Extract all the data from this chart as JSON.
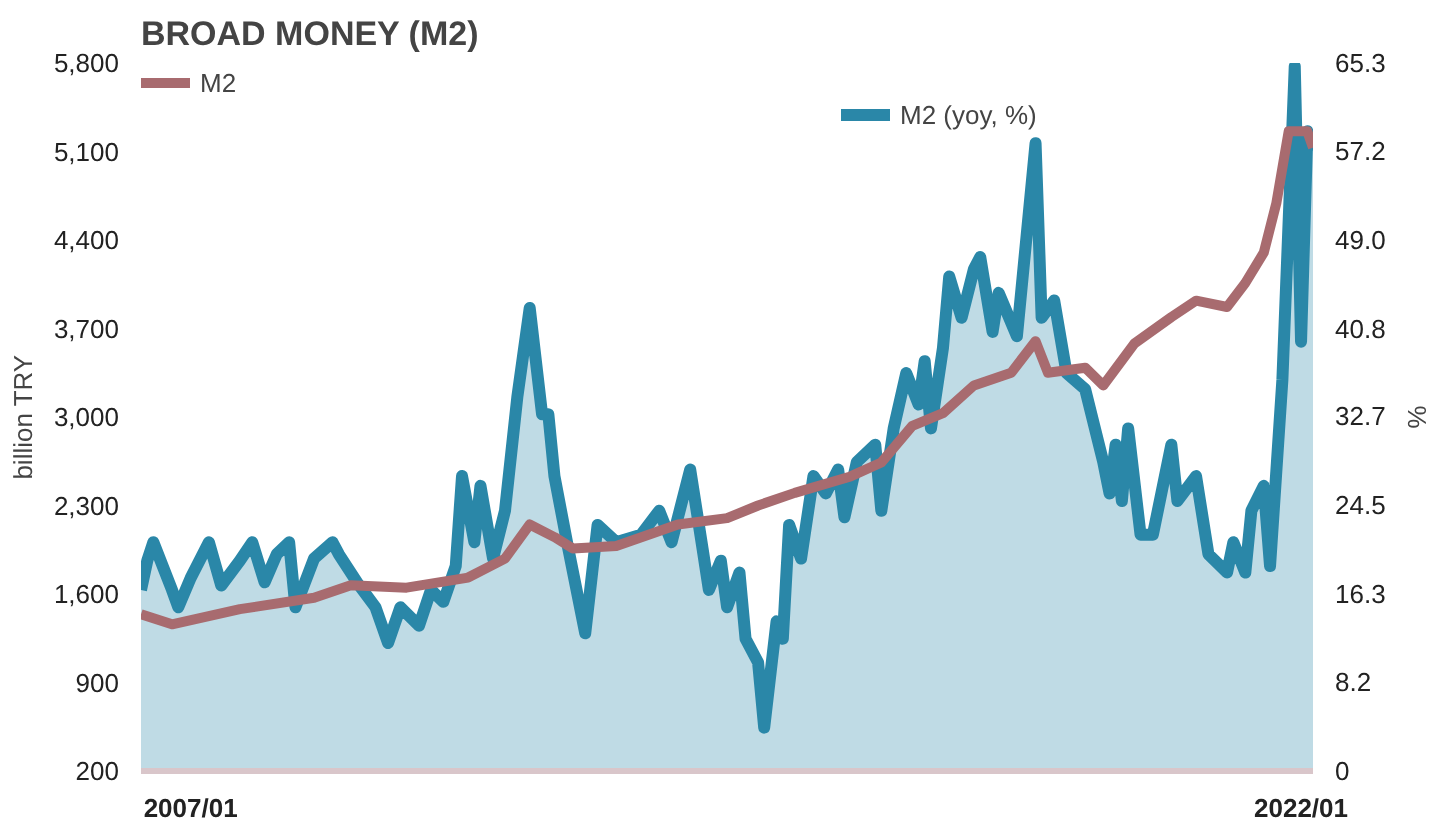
{
  "chart_data": {
    "type": "line",
    "title": "BROAD MONEY (M2)",
    "ylabel": "billion TRY",
    "y2label": "%",
    "legend": "top",
    "grid": false,
    "xlim": [
      "2006-05",
      "2022-03"
    ],
    "xticks": [
      {
        "value": "2007-01",
        "label": "2007/01"
      },
      {
        "value": "2022-01",
        "label": "2022/01"
      }
    ],
    "ylim": [
      200,
      5800
    ],
    "yticks": [
      200,
      900,
      {
        "value": 1600,
        "label": "1,600"
      },
      {
        "value": 2300,
        "label": "2,300"
      },
      {
        "value": 3000,
        "label": "3,000"
      },
      {
        "value": 3700,
        "label": "3,700"
      },
      {
        "value": 4400,
        "label": "4,400"
      },
      {
        "value": 5100,
        "label": "5,100"
      },
      {
        "value": 5800,
        "label": "5,800"
      }
    ],
    "y2lim": [
      0,
      65.3
    ],
    "y2ticks": [
      0,
      8.2,
      16.3,
      24.5,
      32.7,
      40.8,
      {
        "value": 49,
        "label": "49.0"
      },
      57.2,
      65.3
    ],
    "series": [
      {
        "name": "M2",
        "color": "#a86b6f",
        "x": [
          "2006-05",
          "2006-10",
          "2007-09",
          "2008-09",
          "2009-03",
          "2009-12",
          "2010-10",
          "2011-04",
          "2011-08",
          "2011-12",
          "2012-03",
          "2012-10",
          "2013-08",
          "2014-04",
          "2014-09",
          "2015-03",
          "2015-12",
          "2016-05",
          "2016-10",
          "2017-03",
          "2017-08",
          "2018-02",
          "2018-06",
          "2018-08",
          "2019-02",
          "2019-05",
          "2019-10",
          "2020-04",
          "2020-08",
          "2021-01",
          "2021-04",
          "2021-07",
          "2021-09",
          "2021-11",
          "2022-02",
          "2022-03"
        ],
        "values": [
          1440,
          1360,
          1480,
          1570,
          1670,
          1650,
          1730,
          1880,
          2150,
          2050,
          1960,
          1980,
          2150,
          2200,
          2300,
          2400,
          2530,
          2640,
          2930,
          3030,
          3250,
          3350,
          3600,
          3350,
          3390,
          3250,
          3580,
          3790,
          3920,
          3870,
          4060,
          4300,
          4690,
          5260,
          5260,
          5130
        ]
      },
      {
        "name": "M2 (yoy, %)",
        "type": "area",
        "axis": "y2",
        "color": "#2a87a8",
        "x": [
          "2006-05",
          "2006-06",
          "2006-07",
          "2006-10",
          "2006-11",
          "2007-01",
          "2007-04",
          "2007-06",
          "2007-09",
          "2007-11",
          "2008-01",
          "2008-03",
          "2008-05",
          "2008-06",
          "2008-09",
          "2008-12",
          "2009-01",
          "2009-04",
          "2009-07",
          "2009-09",
          "2009-11",
          "2010-02",
          "2010-04",
          "2010-06",
          "2010-08",
          "2010-09",
          "2010-11",
          "2010-12",
          "2011-02",
          "2011-04",
          "2011-06",
          "2011-08",
          "2011-10",
          "2011-11",
          "2011-12",
          "2012-02",
          "2012-05",
          "2012-07",
          "2012-10",
          "2013-02",
          "2013-05",
          "2013-07",
          "2013-10",
          "2013-12",
          "2014-01",
          "2014-03",
          "2014-04",
          "2014-06",
          "2014-07",
          "2014-09",
          "2014-10",
          "2014-12",
          "2015-01",
          "2015-02",
          "2015-04",
          "2015-06",
          "2015-08",
          "2015-10",
          "2015-11",
          "2016-01",
          "2016-04",
          "2016-05",
          "2016-07",
          "2016-09",
          "2016-11",
          "2016-12",
          "2017-01",
          "2017-03",
          "2017-04",
          "2017-06",
          "2017-08",
          "2017-09",
          "2017-11",
          "2017-12",
          "2018-03",
          "2018-06",
          "2018-07",
          "2018-09",
          "2018-11",
          "2019-02",
          "2019-05",
          "2019-06",
          "2019-07",
          "2019-08",
          "2019-09",
          "2019-11",
          "2020-01",
          "2020-04",
          "2020-05",
          "2020-08",
          "2020-10",
          "2021-01",
          "2021-02",
          "2021-04",
          "2021-05",
          "2021-07",
          "2021-08",
          "2021-10",
          "2021-12",
          "2022-01",
          "2022-02",
          "2022-03"
        ],
        "values": [
          16.7,
          19.4,
          21.1,
          16.7,
          15.1,
          17.8,
          21.1,
          17.1,
          19.4,
          21.1,
          17.4,
          20.0,
          21.1,
          15.1,
          19.6,
          21.1,
          20.0,
          17.4,
          15.1,
          11.8,
          15.1,
          13.4,
          16.7,
          15.6,
          18.9,
          27.2,
          21.1,
          26.3,
          19.6,
          24.0,
          34.5,
          42.7,
          32.9,
          32.9,
          27.2,
          21.1,
          12.7,
          22.7,
          21.1,
          21.8,
          24.0,
          21.1,
          27.8,
          20.5,
          16.7,
          19.4,
          15.1,
          18.3,
          12.2,
          10.0,
          4.0,
          13.8,
          12.2,
          22.7,
          19.6,
          27.2,
          25.6,
          27.8,
          23.4,
          28.5,
          30.1,
          24.0,
          31.6,
          36.7,
          33.8,
          37.8,
          31.6,
          39.0,
          45.6,
          41.8,
          46.3,
          47.4,
          40.5,
          44.1,
          40.1,
          57.9,
          41.8,
          43.4,
          36.7,
          35.2,
          28.5,
          25.6,
          30.1,
          24.9,
          31.6,
          21.8,
          21.8,
          30.1,
          24.9,
          27.2,
          20.0,
          18.3,
          21.1,
          18.3,
          24.0,
          26.3,
          18.9,
          36.1,
          65.0,
          39.6,
          59.0,
          57.2
        ]
      }
    ]
  }
}
